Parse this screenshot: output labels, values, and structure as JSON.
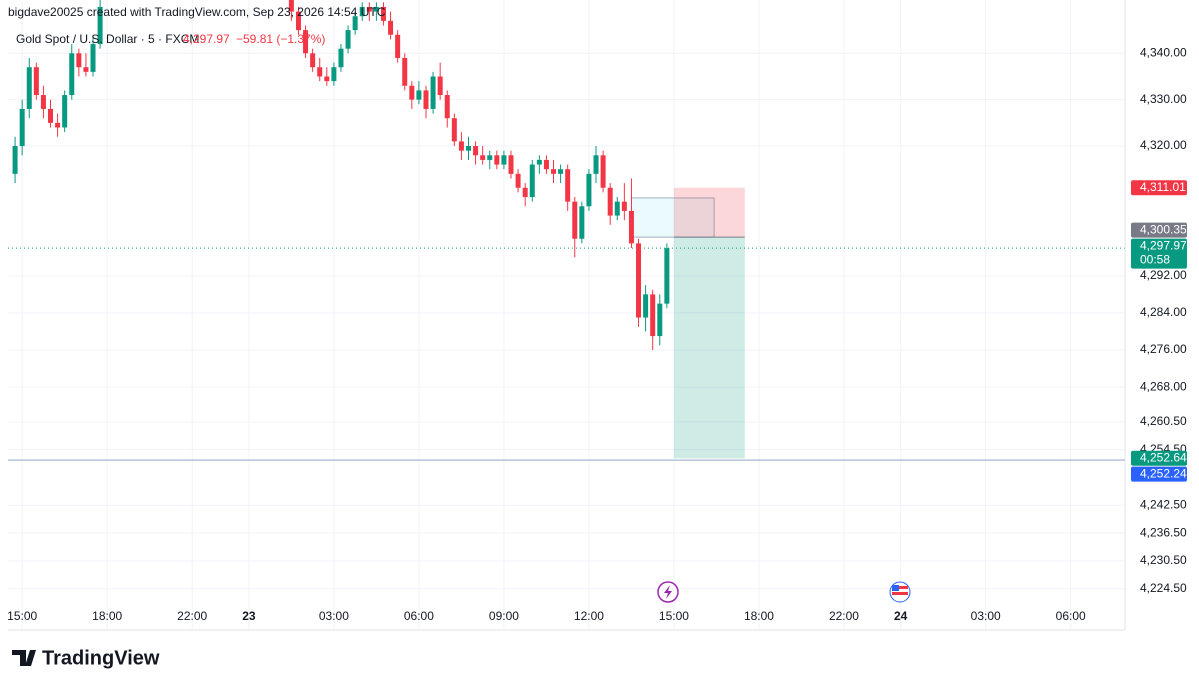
{
  "chart_data": {
    "type": "candlestick",
    "header": "bigdave20025 created with TradingView.com, Sep 23, 2026 14:54 UTC",
    "symbol": "Gold Spot / U.S. Dollar · 5 · FXCM",
    "last_price": {
      "value": 4297.97,
      "label": "4,297.97"
    },
    "change": "−59.81 (−1.37%)",
    "countdown": "00:58",
    "up_color": "#089981",
    "down_color": "#f23645",
    "grid": true,
    "ylim": [
      4215.6,
      4351.5
    ],
    "yticks": [
      {
        "value": 4340,
        "label": "4,340.00"
      },
      {
        "value": 4330,
        "label": "4,330.00"
      },
      {
        "value": 4320,
        "label": "4,320.00"
      },
      {
        "value": 4292,
        "label": "4,292.00"
      },
      {
        "value": 4284,
        "label": "4,284.00"
      },
      {
        "value": 4276,
        "label": "4,276.00"
      },
      {
        "value": 4268,
        "label": "4,268.00"
      },
      {
        "value": 4260.5,
        "label": "4,260.50"
      },
      {
        "value": 4254.5,
        "label": "4,254.50"
      },
      {
        "value": 4242.5,
        "label": "4,242.50"
      },
      {
        "value": 4236.5,
        "label": "4,236.50"
      },
      {
        "value": 4230.5,
        "label": "4,230.50"
      },
      {
        "value": 4224.5,
        "label": "4,224.50"
      }
    ],
    "xlim": [
      -6,
      467
    ],
    "xticks": [
      {
        "value": 0,
        "label": "15:00"
      },
      {
        "value": 36,
        "label": "18:00"
      },
      {
        "value": 72,
        "label": "22:00"
      },
      {
        "value": 96,
        "label": "23"
      },
      {
        "value": 132,
        "label": "03:00"
      },
      {
        "value": 168,
        "label": "06:00"
      },
      {
        "value": 204,
        "label": "09:00"
      },
      {
        "value": 240,
        "label": "12:00"
      },
      {
        "value": 276,
        "label": "15:00"
      },
      {
        "value": 312,
        "label": "18:00"
      },
      {
        "value": 348,
        "label": "22:00"
      },
      {
        "value": 372,
        "label": "24"
      },
      {
        "value": 408,
        "label": "03:00"
      },
      {
        "value": 444,
        "label": "06:00"
      }
    ],
    "candles": [
      [
        -3,
        4314,
        4322,
        4312,
        4320
      ],
      [
        0,
        4320,
        4330,
        4318,
        4328
      ],
      [
        3,
        4328,
        4339,
        4326,
        4337
      ],
      [
        6,
        4337,
        4338,
        4330,
        4331
      ],
      [
        9,
        4331,
        4333,
        4326,
        4328
      ],
      [
        12,
        4328,
        4330,
        4324,
        4325
      ],
      [
        15,
        4325,
        4327,
        4322,
        4324
      ],
      [
        18,
        4324,
        4332,
        4323,
        4331
      ],
      [
        21,
        4331,
        4342,
        4330,
        4340
      ],
      [
        24,
        4340,
        4341,
        4335,
        4337
      ],
      [
        27,
        4337,
        4340,
        4335,
        4336
      ],
      [
        30,
        4336,
        4344,
        4335,
        4342
      ],
      [
        33,
        4342,
        4352,
        4341,
        4350
      ],
      [
        114,
        4352,
        4354,
        4347,
        4349
      ],
      [
        117,
        4349,
        4350,
        4344,
        4345
      ],
      [
        120,
        4345,
        4346,
        4339,
        4340
      ],
      [
        123,
        4340,
        4341,
        4336,
        4337
      ],
      [
        126,
        4337,
        4339,
        4334,
        4335
      ],
      [
        129,
        4335,
        4337,
        4333,
        4334
      ],
      [
        132,
        4334,
        4338,
        4333,
        4337
      ],
      [
        135,
        4337,
        4342,
        4336,
        4341
      ],
      [
        138,
        4341,
        4346,
        4340,
        4345
      ],
      [
        141,
        4345,
        4349,
        4344,
        4348
      ],
      [
        144,
        4348,
        4351,
        4347,
        4350
      ],
      [
        147,
        4350,
        4351,
        4347,
        4349
      ],
      [
        150,
        4349,
        4351,
        4347,
        4350
      ],
      [
        153,
        4350,
        4351,
        4346,
        4347
      ],
      [
        156,
        4347,
        4349,
        4343,
        4344
      ],
      [
        159,
        4344,
        4345,
        4338,
        4339
      ],
      [
        162,
        4339,
        4340,
        4332,
        4333
      ],
      [
        165,
        4333,
        4334,
        4328,
        4330
      ],
      [
        168,
        4330,
        4334,
        4329,
        4332
      ],
      [
        171,
        4332,
        4333,
        4326,
        4328
      ],
      [
        174,
        4328,
        4336,
        4327,
        4335
      ],
      [
        177,
        4335,
        4338,
        4330,
        4331
      ],
      [
        180,
        4331,
        4332,
        4324,
        4326
      ],
      [
        183,
        4326,
        4327,
        4320,
        4321
      ],
      [
        186,
        4321,
        4323,
        4317,
        4319
      ],
      [
        189,
        4319,
        4322,
        4317,
        4320
      ],
      [
        192,
        4320,
        4321,
        4316,
        4318
      ],
      [
        195,
        4318,
        4320,
        4316,
        4317
      ],
      [
        198,
        4317,
        4319,
        4315,
        4318
      ],
      [
        201,
        4318,
        4319,
        4315,
        4316
      ],
      [
        204,
        4316,
        4319,
        4315,
        4318
      ],
      [
        207,
        4318,
        4319,
        4313,
        4314
      ],
      [
        210,
        4314,
        4315,
        4310,
        4311
      ],
      [
        213,
        4311,
        4312,
        4307,
        4309
      ],
      [
        216,
        4309,
        4317,
        4308,
        4316
      ],
      [
        219,
        4316,
        4318,
        4314,
        4317
      ],
      [
        222,
        4317,
        4318,
        4314,
        4315
      ],
      [
        225,
        4315,
        4317,
        4312,
        4314
      ],
      [
        228,
        4314,
        4316,
        4312,
        4315
      ],
      [
        231,
        4315,
        4316,
        4306,
        4308
      ],
      [
        234,
        4308,
        4309,
        4296,
        4300
      ],
      [
        237,
        4300,
        4308,
        4299,
        4307
      ],
      [
        240,
        4307,
        4315,
        4306,
        4314
      ],
      [
        243,
        4314,
        4320,
        4312,
        4318
      ],
      [
        246,
        4318,
        4319,
        4310,
        4311
      ],
      [
        249,
        4311,
        4312,
        4303,
        4305
      ],
      [
        252,
        4305,
        4309,
        4304,
        4308
      ],
      [
        255,
        4308,
        4312,
        4304,
        4306
      ],
      [
        258,
        4306,
        4313,
        4298,
        4299
      ],
      [
        261,
        4299,
        4300,
        4281,
        4283
      ],
      [
        264,
        4283,
        4290,
        4280,
        4288
      ],
      [
        267,
        4288,
        4289,
        4276,
        4279
      ],
      [
        270,
        4279,
        4288,
        4277,
        4286
      ],
      [
        273,
        4286,
        4299,
        4285,
        4297.97
      ]
    ],
    "position": {
      "x": [
        276,
        306
      ],
      "stop": {
        "value": 4311.01,
        "label": "4,311.01"
      },
      "entry": {
        "value": 4300.35,
        "label": "4,300.35"
      },
      "target": {
        "value": 4252.64,
        "label": "4,252.64"
      }
    },
    "box": {
      "x": [
        258,
        293
      ],
      "y": [
        4300.35,
        4308.8
      ]
    },
    "hline": {
      "value": 4252.24,
      "label": "4,252.24"
    }
  }
}
